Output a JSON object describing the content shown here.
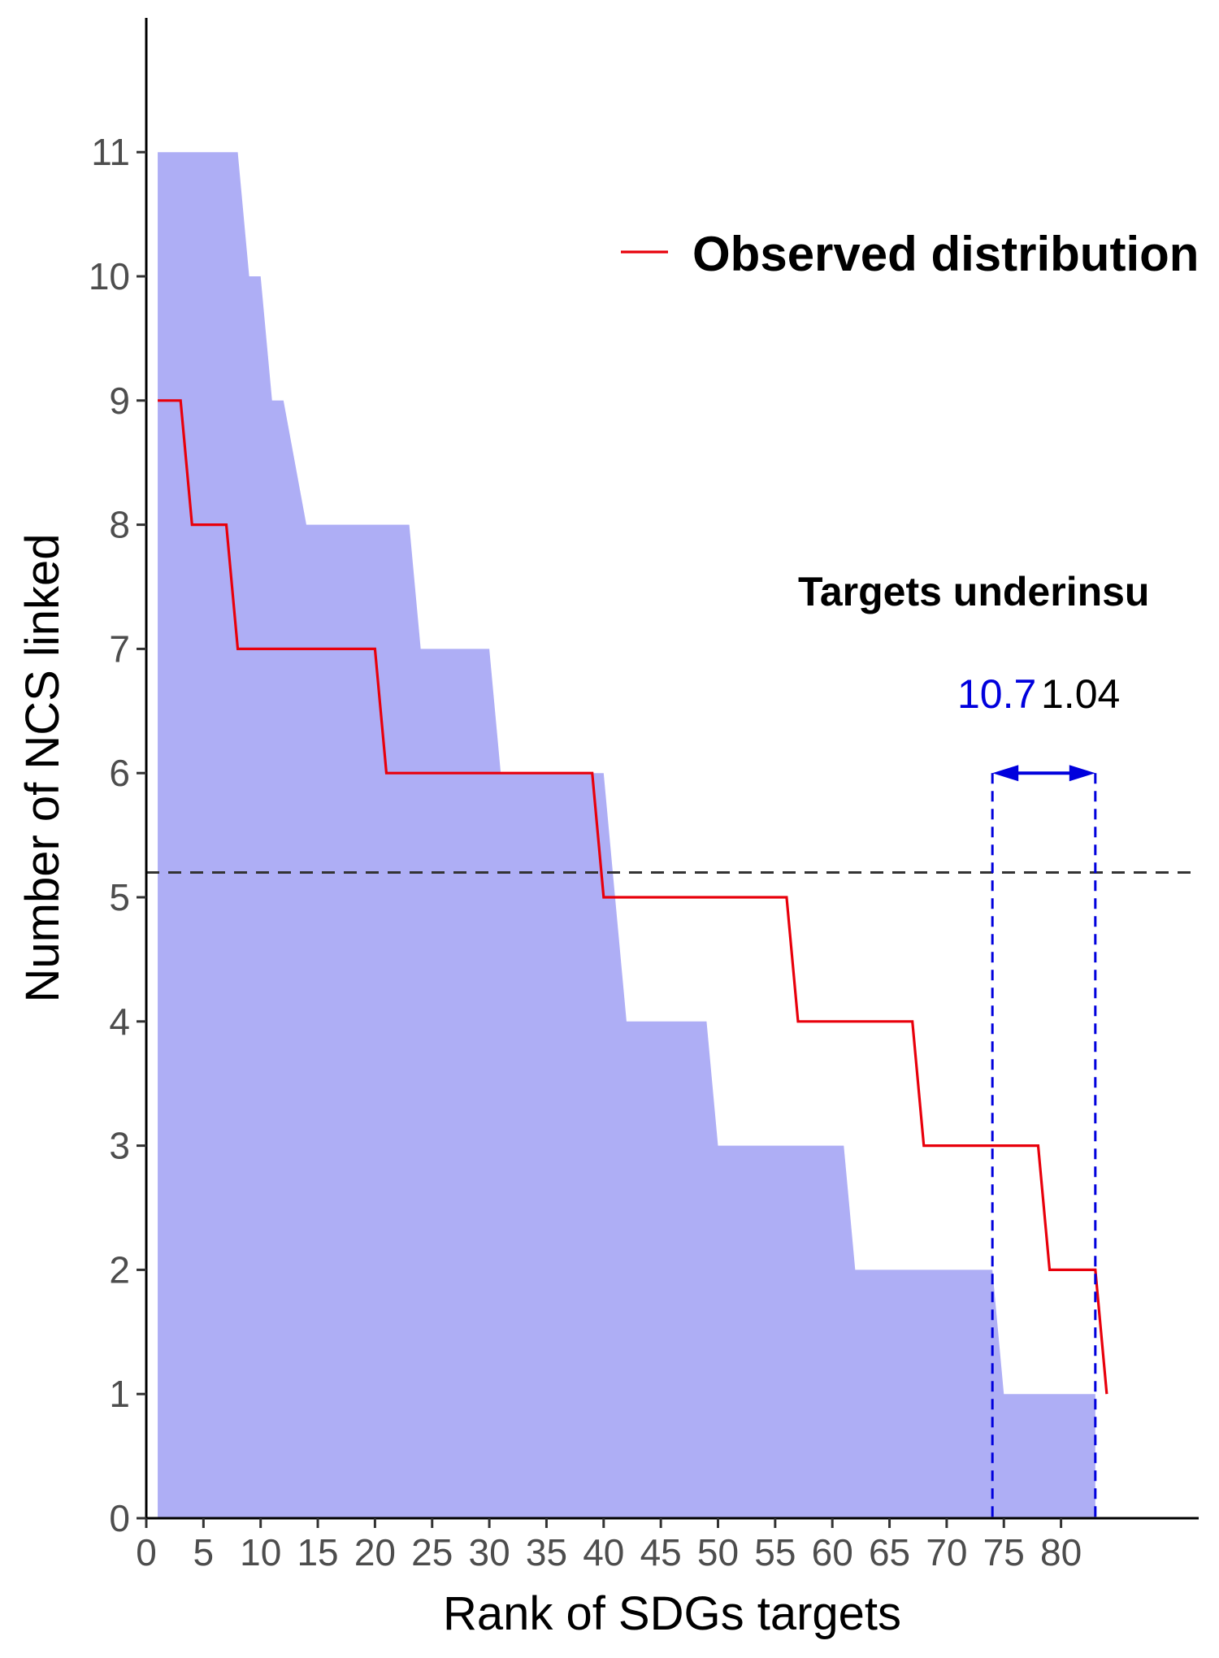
{
  "chart_data": {
    "type": "area",
    "xlabel": "Rank of SDGs targets",
    "ylabel": "Number of NCS linked",
    "x_ticks": [
      0,
      5,
      10,
      15,
      20,
      25,
      30,
      35,
      40,
      45,
      50,
      55,
      60,
      65,
      70,
      75,
      80
    ],
    "y_ticks": [
      0,
      1,
      2,
      3,
      4,
      5,
      6,
      7,
      8,
      9,
      10,
      11
    ],
    "xlim": [
      0,
      92
    ],
    "ylim": [
      0,
      12
    ],
    "grid": false,
    "legend_position": "top-right",
    "series": [
      {
        "name": "",
        "kind": "area",
        "color": "#aeaef5",
        "x": [
          1,
          8,
          9,
          10,
          11,
          12,
          14,
          15,
          23,
          24,
          30,
          31,
          39,
          40,
          41,
          42,
          49,
          50,
          61,
          62,
          74,
          75,
          83
        ],
        "y": [
          11,
          11,
          10,
          10,
          9,
          9,
          8,
          8,
          8,
          7,
          7,
          6,
          6,
          6,
          5,
          4,
          4,
          3,
          3,
          2,
          2,
          1,
          1
        ]
      },
      {
        "name": "Observed distribution",
        "kind": "line",
        "color": "#e8000b",
        "x": [
          1,
          3,
          4,
          7,
          8,
          20,
          21,
          39,
          40,
          56,
          57,
          67,
          68,
          78,
          79,
          83,
          84
        ],
        "y": [
          9,
          9,
          8,
          8,
          7,
          7,
          6,
          6,
          5,
          5,
          4,
          4,
          3,
          3,
          2,
          2,
          1
        ]
      }
    ],
    "reference_line": {
      "y": 5.2,
      "style": "dashed",
      "color": "#333333"
    },
    "annotation": {
      "title": "Targets underinsu",
      "value_blue": "10.7",
      "value_black": "1.04",
      "blue_color": "#0000dd",
      "x_from": 74,
      "x_to": 83,
      "arrow_y": 6
    }
  }
}
